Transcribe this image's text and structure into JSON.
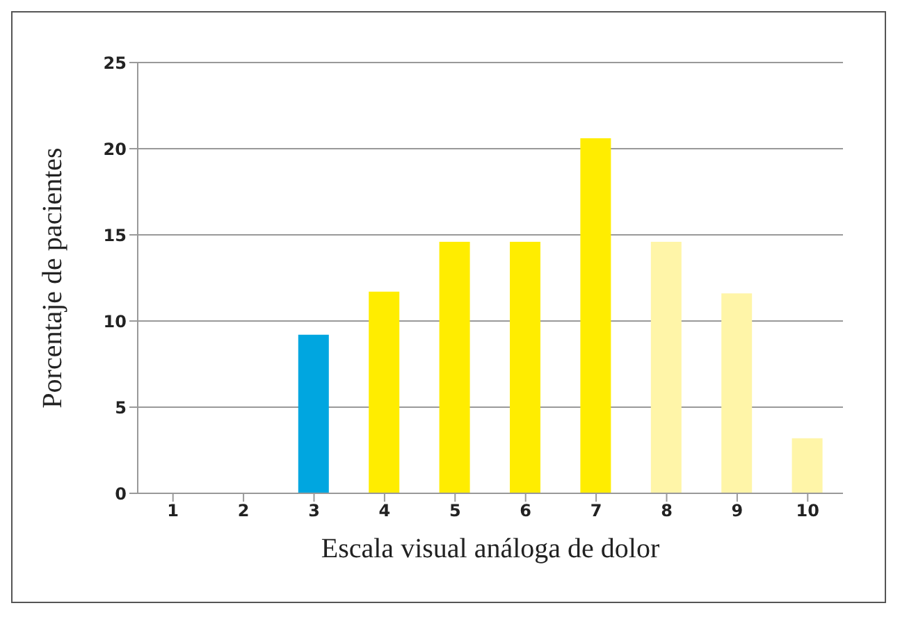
{
  "chart_data": {
    "type": "bar",
    "xlabel": "Escala visual análoga de dolor",
    "ylabel": "Porcentaje de pacientes",
    "categories": [
      "1",
      "2",
      "3",
      "4",
      "5",
      "6",
      "7",
      "8",
      "9",
      "10"
    ],
    "values": [
      0,
      0,
      9.2,
      11.7,
      14.6,
      14.6,
      20.6,
      14.6,
      11.6,
      3.2
    ],
    "colors": [
      "#00a6e0",
      "#00a6e0",
      "#00a6e0",
      "#ffed00",
      "#ffed00",
      "#ffed00",
      "#ffed00",
      "#fff5a8",
      "#fff5a8",
      "#fff5a8"
    ],
    "ylim": [
      0,
      25
    ],
    "yticks": [
      0,
      5,
      10,
      15,
      20,
      25
    ],
    "grid": "y"
  }
}
